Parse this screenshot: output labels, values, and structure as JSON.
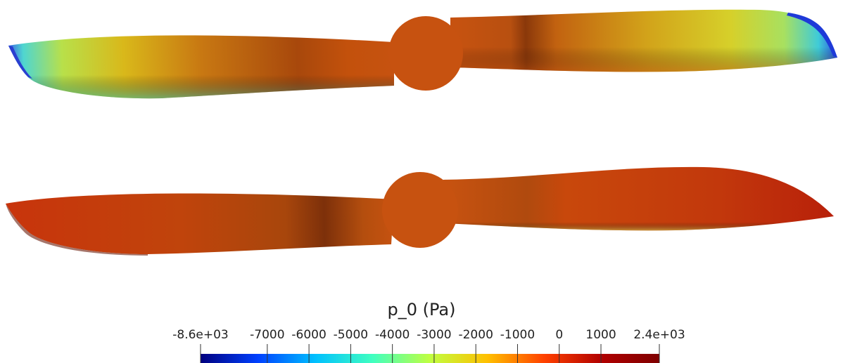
{
  "scene": {
    "views": [
      {
        "name": "propeller-top",
        "field": "suction side"
      },
      {
        "name": "propeller-bottom",
        "field": "pressure side"
      }
    ]
  },
  "colorbar": {
    "title": "p_0 (Pa)",
    "min": -8600,
    "max": 2400,
    "ticks": [
      {
        "label": "-8.6e+03",
        "value": -8600
      },
      {
        "label": "-7000",
        "value": -7000
      },
      {
        "label": "-6000",
        "value": -6000
      },
      {
        "label": "-5000",
        "value": -5000
      },
      {
        "label": "-4000",
        "value": -4000
      },
      {
        "label": "-3000",
        "value": -3000
      },
      {
        "label": "-2000",
        "value": -2000
      },
      {
        "label": "-1000",
        "value": -1000
      },
      {
        "label": "0",
        "value": 0
      },
      {
        "label": "1000",
        "value": 1000
      },
      {
        "label": "2.4e+03",
        "value": 2400
      }
    ],
    "colormap": [
      "#00007f",
      "#0040ff",
      "#00c0ff",
      "#40ffc0",
      "#c0ff40",
      "#ffc000",
      "#ff4000",
      "#b00000",
      "#7f0000"
    ]
  }
}
